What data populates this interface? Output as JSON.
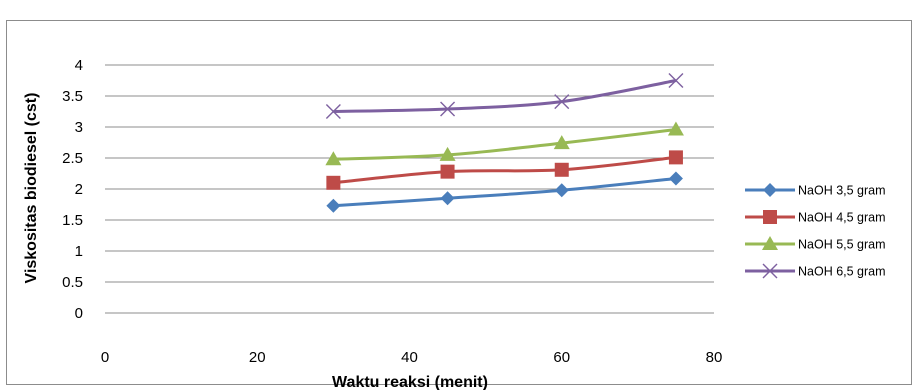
{
  "chart_data": {
    "type": "line",
    "title": "",
    "xlabel": "Waktu reaksi (menit)",
    "ylabel": "Viskositas biodiesel (cst)",
    "xlim": [
      0,
      80
    ],
    "ylim": [
      0,
      4
    ],
    "xticks": [
      0,
      20,
      40,
      60,
      80
    ],
    "yticks": [
      0,
      0.5,
      1,
      1.5,
      2,
      2.5,
      3,
      3.5,
      4
    ],
    "x_tick_labels": [
      "0",
      "20",
      "40",
      "60",
      "80"
    ],
    "y_tick_labels": [
      "0",
      "0.5",
      "1",
      "1.5",
      "2",
      "2.5",
      "3",
      "3.5",
      "4"
    ],
    "grid": "horizontal",
    "legend_position": "right",
    "x": [
      30,
      45,
      60,
      75
    ],
    "series": [
      {
        "name": "NaOH 3,5 gram",
        "values": [
          1.73,
          1.85,
          1.98,
          2.17
        ],
        "color": "#4a7ebb",
        "marker": "diamond"
      },
      {
        "name": "NaOH 4,5 gram",
        "values": [
          2.1,
          2.28,
          2.31,
          2.51
        ],
        "color": "#be4b48",
        "marker": "square"
      },
      {
        "name": "NaOH 5,5 gram",
        "values": [
          2.48,
          2.55,
          2.74,
          2.96
        ],
        "color": "#98b954",
        "marker": "triangle"
      },
      {
        "name": "NaOH 6,5 gram",
        "values": [
          3.25,
          3.29,
          3.41,
          3.75
        ],
        "color": "#7d60a0",
        "marker": "x"
      }
    ]
  }
}
